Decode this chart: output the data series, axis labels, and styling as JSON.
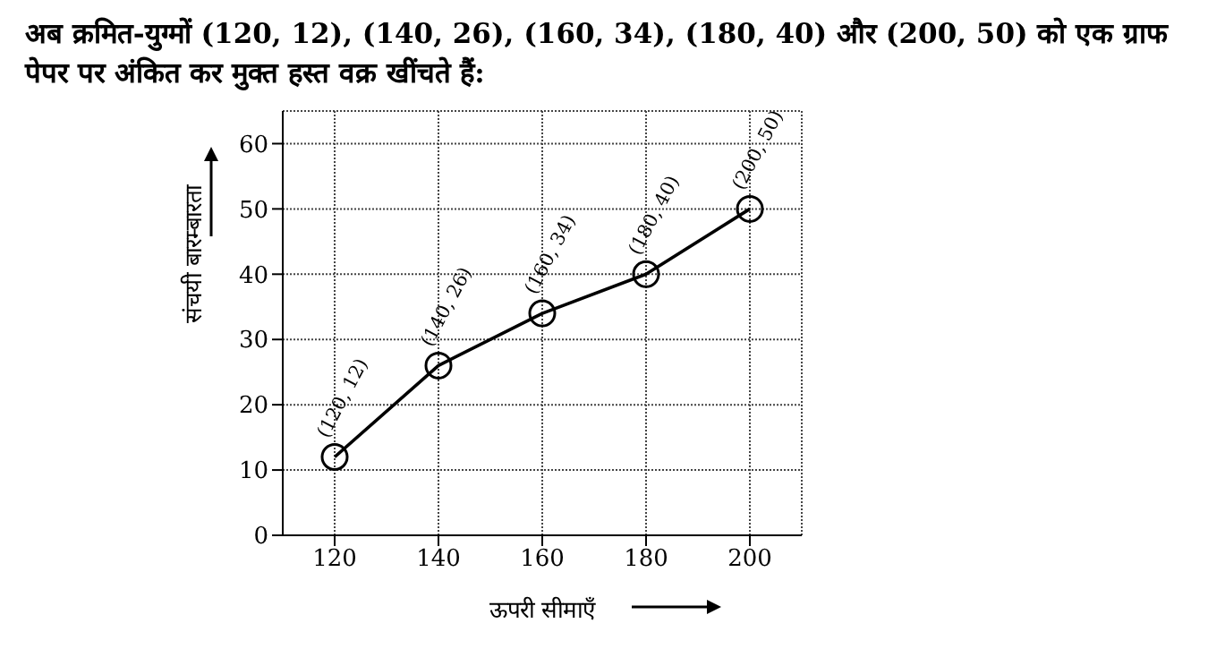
{
  "chart_data": {
    "type": "line",
    "title": "अब क्रमित-युग्मों (120, 12), (140, 26), (160, 34), (180, 40) और (200, 50) को एक ग्राफ पेपर पर अंकित कर मुक्त हस्त वक्र खींचते हैं:",
    "xlabel": "ऊपरी सीमाएँ",
    "ylabel": "संचयी बारम्बारता",
    "x": [
      120,
      140,
      160,
      180,
      200
    ],
    "series": [
      {
        "color": "#000000",
        "values": [
          12,
          26,
          34,
          40,
          50
        ],
        "value_labels": [
          "(120, 12)",
          "(140, 26)",
          "(160, 34)",
          "(180, 40)",
          "(200, 50)"
        ]
      }
    ],
    "xlim": [
      110,
      210
    ],
    "xticks": [
      120,
      140,
      160,
      180,
      200
    ],
    "ylim": [
      0,
      65
    ],
    "yticks": [
      0,
      10,
      20,
      30,
      40,
      50,
      60
    ],
    "grid": true,
    "marker": "circle",
    "line_style": "solid"
  }
}
